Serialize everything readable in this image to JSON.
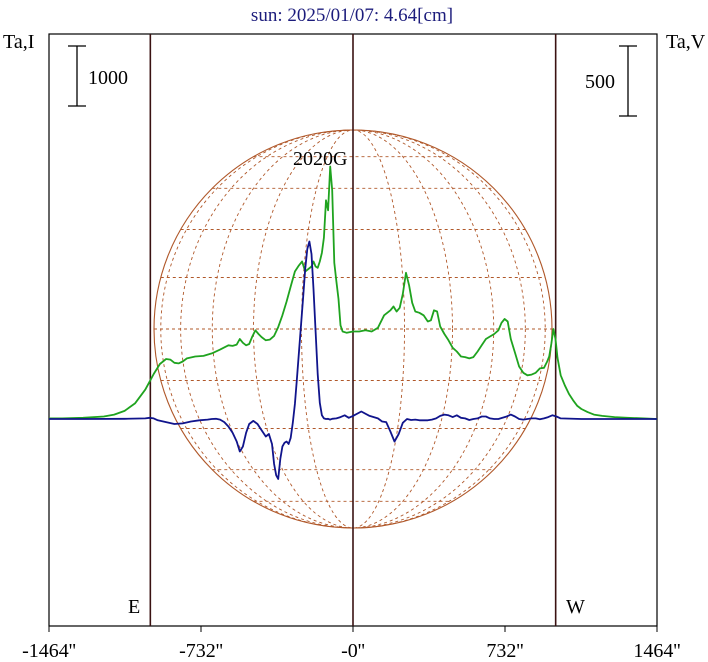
{
  "chart_data": {
    "type": "line",
    "title": "sun: 2025/01/07: 4.64[cm]",
    "left_axis_label": "Ta,I",
    "right_axis_label": "Ta,V",
    "left_scale_bar": "1000",
    "right_scale_bar": "500",
    "annotation": "2020G",
    "east_label": "E",
    "west_label": "W",
    "xlim": [
      -1464,
      1464
    ],
    "x_ticks": [
      -1464,
      -732,
      0,
      732,
      1464
    ],
    "x_tick_labels": [
      "-1464''",
      "-732''",
      "-0''",
      "732''",
      "1464''"
    ],
    "limb_markers": [
      -976,
      976
    ],
    "colors": {
      "stokes_I": "#1fa31f",
      "stokes_V": "#10148c",
      "grid": "#b0582a",
      "frame": "#000000",
      "limb": "#3a1212"
    },
    "series": [
      {
        "name": "Ta,I",
        "color": "#1fa31f",
        "x": [
          -1464,
          -1400,
          -1300,
          -1200,
          -1150,
          -1100,
          -1050,
          -1000,
          -960,
          -930,
          -900,
          -880,
          -860,
          -840,
          -820,
          -800,
          -760,
          -720,
          -680,
          -640,
          -600,
          -580,
          -560,
          -545,
          -530,
          -515,
          -500,
          -485,
          -470,
          -455,
          -440,
          -420,
          -400,
          -380,
          -360,
          -340,
          -320,
          -300,
          -280,
          -260,
          -245,
          -230,
          -215,
          -200,
          -190,
          -180,
          -170,
          -160,
          -150,
          -140,
          -130,
          -120,
          -110,
          -100,
          -90,
          -80,
          -70,
          -60,
          -50,
          -30,
          0,
          30,
          60,
          90,
          120,
          150,
          180,
          195,
          210,
          225,
          240,
          255,
          270,
          285,
          300,
          320,
          340,
          360,
          375,
          390,
          405,
          420,
          440,
          460,
          480,
          500,
          520,
          540,
          560,
          580,
          600,
          620,
          640,
          660,
          680,
          700,
          715,
          730,
          745,
          760,
          780,
          800,
          820,
          840,
          860,
          880,
          900,
          920,
          935,
          945,
          955,
          965,
          975,
          985,
          1000,
          1020,
          1040,
          1060,
          1080,
          1100,
          1130,
          1160,
          1200,
          1260,
          1320,
          1400,
          1464
        ],
        "y": [
          0.05,
          0.05,
          0.1,
          0.2,
          0.35,
          0.65,
          1.25,
          2.35,
          3.6,
          4.4,
          4.8,
          4.75,
          4.5,
          4.45,
          4.6,
          4.85,
          5.0,
          5.05,
          5.25,
          5.55,
          5.9,
          5.85,
          5.95,
          6.4,
          6.1,
          5.9,
          6.0,
          6.6,
          7.1,
          6.8,
          6.55,
          6.3,
          6.35,
          6.65,
          7.35,
          8.3,
          9.4,
          10.6,
          11.8,
          12.3,
          12.6,
          11.8,
          12.0,
          12.2,
          12.6,
          12.2,
          12.1,
          12.6,
          13.3,
          14.5,
          17.5,
          16.7,
          20.2,
          18.3,
          12.5,
          11.0,
          9.6,
          7.5,
          7.0,
          6.9,
          7.0,
          7.0,
          7.1,
          7.0,
          7.3,
          8.3,
          8.7,
          9.0,
          8.6,
          8.9,
          10.0,
          11.7,
          10.7,
          9.3,
          8.6,
          8.5,
          8.3,
          7.8,
          7.9,
          8.7,
          8.6,
          7.4,
          6.8,
          6.3,
          5.7,
          5.4,
          5.0,
          4.95,
          4.85,
          4.95,
          5.4,
          5.9,
          6.4,
          6.6,
          6.8,
          7.1,
          7.7,
          8.0,
          7.8,
          6.4,
          5.3,
          4.2,
          3.7,
          3.5,
          3.55,
          3.7,
          4.05,
          4.1,
          4.6,
          5.0,
          6.0,
          7.2,
          6.4,
          4.9,
          3.5,
          2.7,
          2.0,
          1.5,
          1.05,
          0.8,
          0.55,
          0.35,
          0.25,
          0.15,
          0.1,
          0.05,
          0.0
        ]
      },
      {
        "name": "Ta,V",
        "color": "#10148c",
        "x": [
          -1464,
          -1300,
          -1100,
          -1000,
          -980,
          -960,
          -940,
          -900,
          -860,
          -820,
          -780,
          -740,
          -700,
          -680,
          -660,
          -640,
          -620,
          -600,
          -580,
          -560,
          -545,
          -530,
          -515,
          -500,
          -480,
          -460,
          -440,
          -420,
          -405,
          -390,
          -380,
          -370,
          -360,
          -350,
          -340,
          -330,
          -320,
          -310,
          -300,
          -290,
          -280,
          -270,
          -260,
          -250,
          -240,
          -230,
          -220,
          -210,
          -200,
          -190,
          -180,
          -170,
          -160,
          -150,
          -140,
          -130,
          -120,
          -110,
          -100,
          -80,
          -60,
          -40,
          -20,
          0,
          40,
          80,
          120,
          140,
          160,
          180,
          200,
          220,
          240,
          260,
          280,
          300,
          320,
          340,
          360,
          380,
          400,
          420,
          440,
          460,
          480,
          500,
          520,
          540,
          560,
          580,
          600,
          620,
          640,
          660,
          680,
          700,
          720,
          740,
          760,
          780,
          800,
          820,
          840,
          860,
          880,
          900,
          920,
          940,
          960,
          980,
          1000,
          1100,
          1300,
          1464
        ],
        "y": [
          0,
          0,
          0.02,
          0.05,
          0.1,
          0.05,
          -0.1,
          -0.25,
          -0.4,
          -0.35,
          -0.2,
          -0.1,
          -0.05,
          0.0,
          0.02,
          -0.05,
          -0.25,
          -0.6,
          -1.1,
          -1.8,
          -2.6,
          -2.2,
          -1.1,
          -0.4,
          -0.15,
          -0.4,
          -0.9,
          -1.4,
          -1.2,
          -2.0,
          -3.6,
          -4.5,
          -4.8,
          -3.2,
          -2.2,
          -1.9,
          -1.8,
          -2.0,
          -1.5,
          -0.3,
          1.2,
          3.2,
          5.4,
          7.6,
          9.8,
          12.0,
          13.6,
          14.2,
          13.2,
          10.4,
          7.0,
          3.6,
          1.3,
          0.3,
          0.05,
          0.0,
          0.02,
          -0.05,
          0.02,
          0.05,
          0.15,
          0.3,
          0.1,
          0.25,
          0.6,
          0.25,
          0.05,
          -0.2,
          -0.25,
          -1.0,
          -1.8,
          -1.2,
          -0.3,
          0.0,
          -0.08,
          -0.05,
          -0.1,
          -0.1,
          -0.1,
          -0.05,
          0.05,
          0.25,
          0.35,
          0.3,
          0.15,
          0.3,
          0.1,
          0.05,
          -0.08,
          0.0,
          0.05,
          0.2,
          0.2,
          0.05,
          0.0,
          0.0,
          0.1,
          0.2,
          0.35,
          0.2,
          0.0,
          -0.05,
          0.0,
          0.05,
          0.05,
          -0.02,
          0.05,
          0.15,
          0.3,
          0.2,
          0.05,
          0.0,
          0.0,
          0.0
        ]
      }
    ]
  }
}
